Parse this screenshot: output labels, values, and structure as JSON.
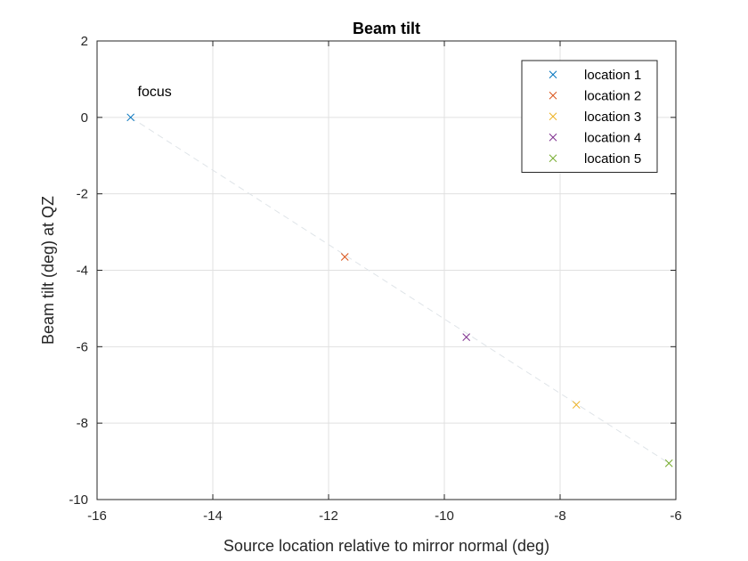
{
  "chart_data": {
    "type": "scatter",
    "title": "Beam tilt",
    "xlabel": "Source location relative to mirror normal (deg)",
    "ylabel": "Beam tilt (deg) at QZ",
    "xlim": [
      -16,
      -6
    ],
    "ylim": [
      -10,
      2
    ],
    "xticks": [
      -16,
      -14,
      -12,
      -10,
      -8,
      -6
    ],
    "yticks": [
      -10,
      -8,
      -6,
      -4,
      -2,
      0,
      2
    ],
    "grid": true,
    "legend_position": "top-right",
    "series": [
      {
        "name": "location 1",
        "color": "#0072BD",
        "marker": "x",
        "x": [
          -15.42
        ],
        "y": [
          0.0
        ]
      },
      {
        "name": "location 2",
        "color": "#D95319",
        "marker": "x",
        "x": [
          -11.72
        ],
        "y": [
          -3.65
        ]
      },
      {
        "name": "location 3",
        "color": "#EDB120",
        "marker": "x",
        "x": [
          -7.72
        ],
        "y": [
          -7.52
        ]
      },
      {
        "name": "location 4",
        "color": "#7E2F8E",
        "marker": "x",
        "x": [
          -9.62
        ],
        "y": [
          -5.75
        ]
      },
      {
        "name": "location 5",
        "color": "#77AC30",
        "marker": "x",
        "x": [
          -6.12
        ],
        "y": [
          -9.05
        ]
      }
    ],
    "fit_line": {
      "x": [
        -15.42,
        -6.12
      ],
      "y": [
        0.0,
        -9.05
      ],
      "style": "dashed",
      "color": "#dfe4e8"
    },
    "annotations": [
      {
        "text": "focus",
        "x": -15.3,
        "y": 0.55
      }
    ]
  }
}
